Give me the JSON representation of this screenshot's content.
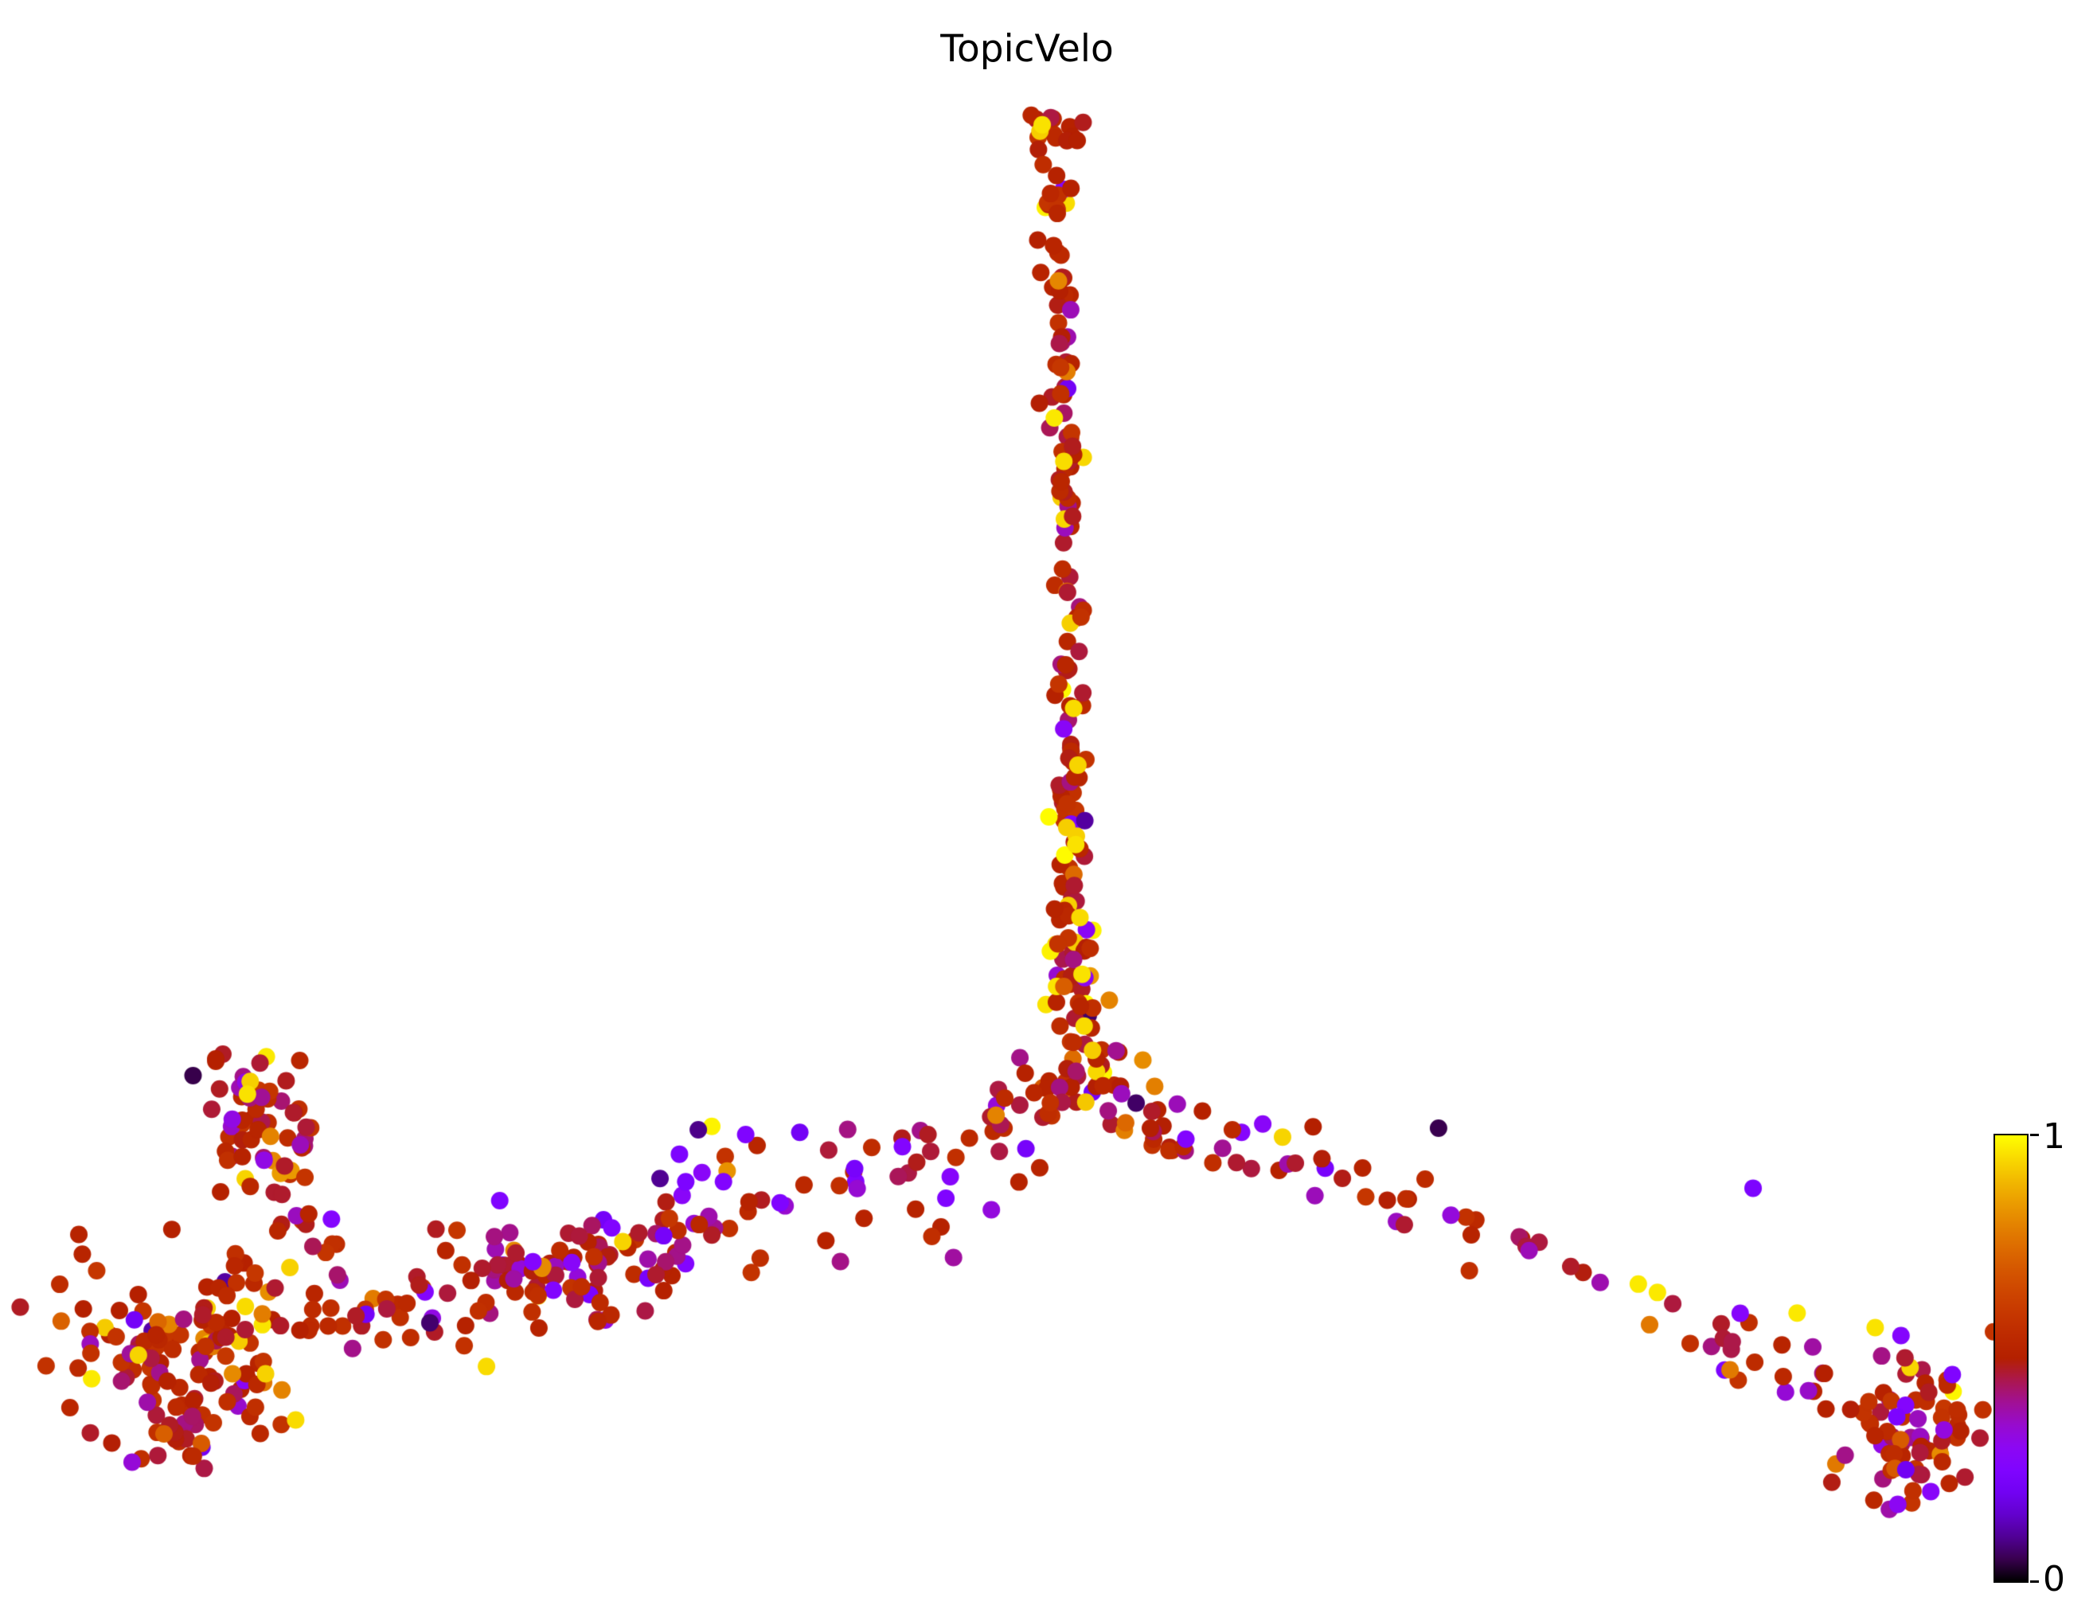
{
  "figure": {
    "background": "#ffffff"
  },
  "chart_data": {
    "type": "scatter",
    "title": "TopicVelo",
    "xlabel": "",
    "ylabel": "",
    "axes_visible": false,
    "grid": false,
    "colormap": "gnuplot",
    "value_range": [
      0,
      1
    ],
    "colorbar": {
      "orientation": "vertical",
      "position": "right",
      "max_label": "1",
      "min_label": "0"
    },
    "marker_radius_px": 11,
    "seed": 1337,
    "n_points_estimate": 950,
    "value_mixes": {
      "default": [
        [
          0.66,
          0.46,
          0.6
        ],
        [
          0.14,
          0.4,
          0.47
        ],
        [
          0.06,
          0.7,
          0.85
        ],
        [
          0.04,
          0.92,
          1.0
        ],
        [
          0.05,
          0.32,
          0.42
        ],
        [
          0.04,
          0.2,
          0.3
        ],
        [
          0.01,
          0.03,
          0.12
        ]
      ],
      "spike": [
        [
          0.7,
          0.46,
          0.6
        ],
        [
          0.1,
          0.4,
          0.47
        ],
        [
          0.05,
          0.7,
          0.85
        ],
        [
          0.08,
          0.92,
          1.0
        ],
        [
          0.03,
          0.32,
          0.42
        ],
        [
          0.03,
          0.2,
          0.3
        ],
        [
          0.01,
          0.03,
          0.12
        ]
      ],
      "violety": [
        [
          0.4,
          0.46,
          0.6
        ],
        [
          0.08,
          0.4,
          0.47
        ],
        [
          0.04,
          0.7,
          0.85
        ],
        [
          0.02,
          0.92,
          1.0
        ],
        [
          0.16,
          0.32,
          0.42
        ],
        [
          0.26,
          0.2,
          0.3
        ],
        [
          0.04,
          0.03,
          0.12
        ]
      ],
      "leftband": [
        [
          0.6,
          0.46,
          0.6
        ],
        [
          0.13,
          0.4,
          0.47
        ],
        [
          0.06,
          0.7,
          0.85
        ],
        [
          0.05,
          0.92,
          1.0
        ],
        [
          0.08,
          0.32,
          0.42
        ],
        [
          0.07,
          0.2,
          0.3
        ],
        [
          0.01,
          0.03,
          0.12
        ]
      ],
      "leftclump": [
        [
          0.64,
          0.46,
          0.6
        ],
        [
          0.14,
          0.4,
          0.47
        ],
        [
          0.07,
          0.7,
          0.85
        ],
        [
          0.06,
          0.92,
          1.0
        ],
        [
          0.05,
          0.32,
          0.42
        ],
        [
          0.03,
          0.2,
          0.3
        ],
        [
          0.01,
          0.03,
          0.12
        ]
      ],
      "rightchain": [
        [
          0.52,
          0.46,
          0.6
        ],
        [
          0.12,
          0.4,
          0.47
        ],
        [
          0.06,
          0.7,
          0.85
        ],
        [
          0.03,
          0.92,
          1.0
        ],
        [
          0.12,
          0.32,
          0.42
        ],
        [
          0.13,
          0.2,
          0.3
        ],
        [
          0.02,
          0.03,
          0.12
        ]
      ],
      "rightclump": [
        [
          0.58,
          0.46,
          0.6
        ],
        [
          0.15,
          0.4,
          0.47
        ],
        [
          0.07,
          0.7,
          0.85
        ],
        [
          0.02,
          0.92,
          1.0
        ],
        [
          0.08,
          0.32,
          0.42
        ],
        [
          0.08,
          0.2,
          0.3
        ],
        [
          0.02,
          0.03,
          0.12
        ]
      ]
    },
    "structures": [
      {
        "type": "blob",
        "name": "top-blob",
        "cx": 0.504,
        "cy": 0.081,
        "sx": 0.009,
        "sy": 0.007,
        "n": 14,
        "mix": "spike"
      },
      {
        "type": "curve",
        "name": "spike",
        "p": [
          [
            0.502,
            0.103
          ],
          [
            0.512,
            0.33
          ],
          [
            0.51,
            0.565
          ]
        ],
        "jx": 0.0035,
        "jy": 0.004,
        "n": 135,
        "mix": "spike"
      },
      {
        "type": "curve",
        "name": "spike-lower",
        "p": [
          [
            0.51,
            0.565
          ],
          [
            0.513,
            0.61
          ],
          [
            0.52,
            0.655
          ]
        ],
        "jx": 0.006,
        "jy": 0.006,
        "n": 40,
        "mix": "spike"
      },
      {
        "type": "blob",
        "name": "junction-fan",
        "cx": 0.524,
        "cy": 0.668,
        "sx": 0.014,
        "sy": 0.012,
        "n": 26,
        "mix": "default"
      },
      {
        "type": "curve",
        "name": "arch-left",
        "p": [
          [
            0.508,
            0.668
          ],
          [
            0.478,
            0.676
          ],
          [
            0.447,
            0.716
          ]
        ],
        "jx": 0.008,
        "jy": 0.007,
        "n": 22,
        "mix": "default"
      },
      {
        "type": "curve",
        "name": "arch-right",
        "p": [
          [
            0.53,
            0.672
          ],
          [
            0.55,
            0.69
          ],
          [
            0.565,
            0.71
          ]
        ],
        "jx": 0.008,
        "jy": 0.007,
        "n": 12,
        "mix": "default"
      },
      {
        "type": "blob",
        "name": "center-scatter",
        "cx": 0.44,
        "cy": 0.73,
        "sx": 0.03,
        "sy": 0.02,
        "n": 22,
        "mix": "violety"
      },
      {
        "type": "blob",
        "name": "mid-scatter",
        "cx": 0.36,
        "cy": 0.745,
        "sx": 0.028,
        "sy": 0.022,
        "n": 26,
        "mix": "violety"
      },
      {
        "type": "curve",
        "name": "left-band",
        "p": [
          [
            0.33,
            0.77
          ],
          [
            0.28,
            0.77
          ],
          [
            0.225,
            0.79
          ]
        ],
        "jx": 0.02,
        "jy": 0.015,
        "n": 55,
        "mix": "leftband"
      },
      {
        "type": "blob",
        "name": "left-band-dense",
        "cx": 0.255,
        "cy": 0.79,
        "sx": 0.022,
        "sy": 0.018,
        "n": 45,
        "mix": "leftband"
      },
      {
        "type": "blob",
        "name": "left-upper-blob",
        "cx": 0.122,
        "cy": 0.688,
        "sx": 0.014,
        "sy": 0.02,
        "n": 55,
        "mix": "leftclump"
      },
      {
        "type": "curve",
        "name": "left-connector",
        "p": [
          [
            0.128,
            0.715
          ],
          [
            0.14,
            0.745
          ],
          [
            0.155,
            0.775
          ]
        ],
        "jx": 0.01,
        "jy": 0.008,
        "n": 18,
        "mix": "default"
      },
      {
        "type": "curve",
        "name": "band-to-cluster",
        "p": [
          [
            0.21,
            0.8
          ],
          [
            0.175,
            0.81
          ],
          [
            0.15,
            0.815
          ]
        ],
        "jx": 0.013,
        "jy": 0.012,
        "n": 25,
        "mix": "leftband"
      },
      {
        "type": "blob",
        "name": "left-cluster",
        "cx": 0.092,
        "cy": 0.83,
        "sx": 0.03,
        "sy": 0.026,
        "n": 135,
        "mix": "leftclump"
      },
      {
        "type": "blob",
        "name": "left-cluster-tail",
        "cx": 0.08,
        "cy": 0.885,
        "sx": 0.018,
        "sy": 0.012,
        "n": 18,
        "mix": "default"
      },
      {
        "type": "curve",
        "name": "right-chain-1",
        "p": [
          [
            0.555,
            0.688
          ],
          [
            0.6,
            0.7
          ],
          [
            0.655,
            0.735
          ]
        ],
        "jx": 0.013,
        "jy": 0.012,
        "n": 22,
        "mix": "rightchain"
      },
      {
        "type": "curve",
        "name": "right-chain-2",
        "p": [
          [
            0.655,
            0.735
          ],
          [
            0.715,
            0.765
          ],
          [
            0.775,
            0.8
          ]
        ],
        "jx": 0.012,
        "jy": 0.011,
        "n": 20,
        "mix": "rightchain"
      },
      {
        "type": "curve",
        "name": "right-chain-3",
        "p": [
          [
            0.775,
            0.8
          ],
          [
            0.83,
            0.83
          ],
          [
            0.878,
            0.858
          ]
        ],
        "jx": 0.01,
        "jy": 0.01,
        "n": 24,
        "mix": "rightchain"
      },
      {
        "type": "blob",
        "name": "right-cluster",
        "cx": 0.91,
        "cy": 0.878,
        "sx": 0.014,
        "sy": 0.025,
        "n": 75,
        "mix": "rightclump"
      }
    ],
    "highlight_points": [
      [
        0.497,
        0.077,
        0.96
      ],
      [
        0.512,
        0.437,
        0.95
      ],
      [
        0.514,
        0.472,
        0.94
      ],
      [
        0.513,
        0.521,
        0.96
      ],
      [
        0.515,
        0.566,
        0.95
      ],
      [
        0.516,
        0.601,
        0.96
      ],
      [
        0.517,
        0.633,
        0.95
      ],
      [
        0.521,
        0.648,
        0.93
      ],
      [
        0.529,
        0.617,
        0.8
      ],
      [
        0.545,
        0.654,
        0.82
      ],
      [
        0.475,
        0.688,
        0.8
      ],
      [
        0.324,
        0.712,
        0.24
      ],
      [
        0.345,
        0.729,
        0.26
      ],
      [
        0.372,
        0.742,
        0.25
      ],
      [
        0.333,
        0.697,
        0.09
      ],
      [
        0.297,
        0.766,
        0.94
      ],
      [
        0.232,
        0.843,
        0.95
      ],
      [
        0.205,
        0.816,
        0.07
      ],
      [
        0.118,
        0.675,
        0.96
      ],
      [
        0.129,
        0.701,
        0.8
      ],
      [
        0.117,
        0.806,
        0.95
      ],
      [
        0.066,
        0.836,
        0.94
      ],
      [
        0.141,
        0.876,
        0.95
      ],
      [
        0.063,
        0.902,
        0.34
      ],
      [
        0.686,
        0.696,
        0.05
      ],
      [
        0.836,
        0.733,
        0.24
      ],
      [
        0.857,
        0.81,
        0.97
      ],
      [
        0.825,
        0.845,
        0.78
      ],
      [
        0.905,
        0.928,
        0.3
      ],
      [
        0.931,
        0.848,
        0.25
      ]
    ]
  }
}
